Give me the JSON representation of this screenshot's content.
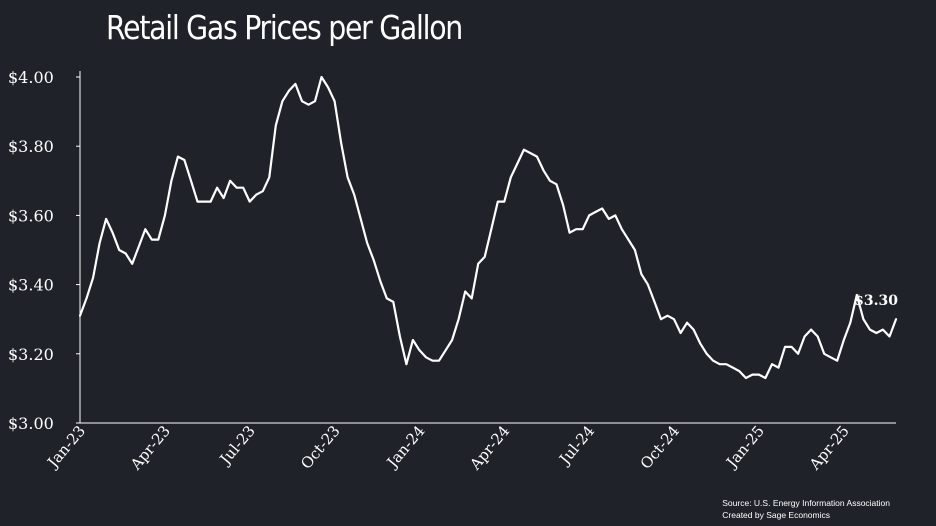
{
  "chart_data": {
    "type": "line",
    "title": "Retail Gas Prices per Gallon",
    "xlabel": "",
    "ylabel": "",
    "ylim": [
      3.0,
      4.0
    ],
    "y_ticks": [
      3.0,
      3.2,
      3.4,
      3.6,
      3.8,
      4.0
    ],
    "y_tick_labels": [
      "$3.00",
      "$3.20",
      "$3.40",
      "$3.60",
      "$3.80",
      "$4.00"
    ],
    "x_tick_labels": [
      "Jan-23",
      "Apr-23",
      "Jul-23",
      "Oct-23",
      "Jan-24",
      "Apr-24",
      "Jul-24",
      "Oct-24",
      "Jan-25",
      "Apr-25"
    ],
    "x_tick_index": [
      0,
      13,
      26,
      39,
      52,
      65,
      78,
      91,
      104,
      117
    ],
    "series": [
      {
        "name": "Retail Gas Price",
        "color": "#ffffff",
        "values": [
          3.31,
          3.36,
          3.42,
          3.52,
          3.59,
          3.55,
          3.5,
          3.49,
          3.46,
          3.51,
          3.56,
          3.53,
          3.53,
          3.6,
          3.7,
          3.77,
          3.76,
          3.7,
          3.64,
          3.64,
          3.64,
          3.68,
          3.65,
          3.7,
          3.68,
          3.68,
          3.64,
          3.66,
          3.67,
          3.71,
          3.86,
          3.93,
          3.96,
          3.98,
          3.93,
          3.92,
          3.93,
          4.0,
          3.97,
          3.93,
          3.81,
          3.71,
          3.66,
          3.59,
          3.52,
          3.47,
          3.41,
          3.36,
          3.35,
          3.25,
          3.17,
          3.24,
          3.21,
          3.19,
          3.18,
          3.18,
          3.21,
          3.24,
          3.3,
          3.38,
          3.36,
          3.46,
          3.48,
          3.56,
          3.64,
          3.64,
          3.71,
          3.75,
          3.79,
          3.78,
          3.77,
          3.73,
          3.7,
          3.69,
          3.63,
          3.55,
          3.56,
          3.56,
          3.6,
          3.61,
          3.62,
          3.59,
          3.6,
          3.56,
          3.53,
          3.5,
          3.43,
          3.4,
          3.35,
          3.3,
          3.31,
          3.3,
          3.26,
          3.29,
          3.27,
          3.23,
          3.2,
          3.18,
          3.17,
          3.17,
          3.16,
          3.15,
          3.13,
          3.14,
          3.14,
          3.13,
          3.17,
          3.16,
          3.22,
          3.22,
          3.2,
          3.25,
          3.27,
          3.25,
          3.2,
          3.19,
          3.18,
          3.24,
          3.29,
          3.37,
          3.3,
          3.27,
          3.26,
          3.27,
          3.25,
          3.3
        ]
      }
    ],
    "end_label": "$3.30",
    "grid": false,
    "legend": "none",
    "source_lines": [
      "Source: U.S. Energy Information Association",
      "Created by Sage Economics"
    ]
  }
}
